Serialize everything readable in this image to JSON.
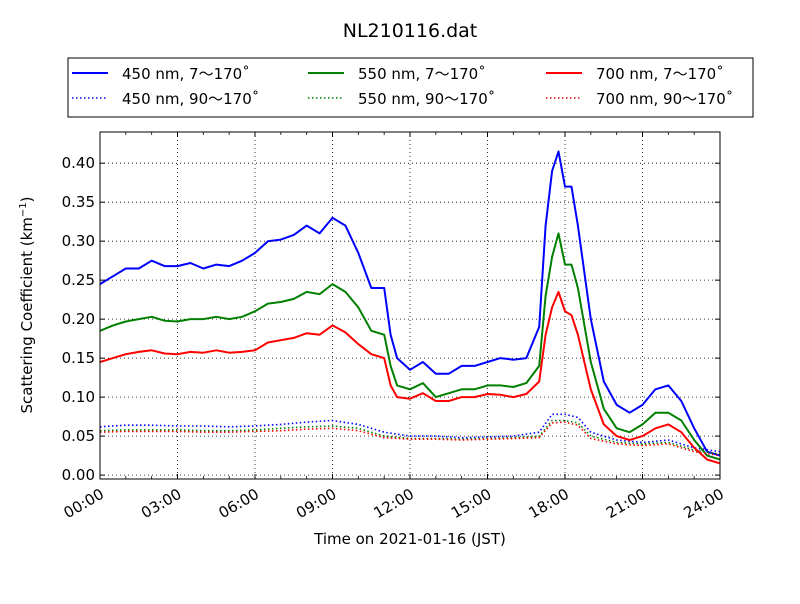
{
  "chart_data": {
    "type": "line",
    "title": "NL210116.dat",
    "xlabel": "Time on 2021-01-16 (JST)",
    "ylabel_main": "Scattering Coefficient (km",
    "ylabel_sup": "−1",
    "ylabel_close": ")",
    "xlim": [
      0,
      24
    ],
    "ylim": [
      -0.005,
      0.44
    ],
    "x_unit": "hours",
    "xticks": [
      {
        "value": 0,
        "label": "00:00"
      },
      {
        "value": 3,
        "label": "03:00"
      },
      {
        "value": 6,
        "label": "06:00"
      },
      {
        "value": 9,
        "label": "09:00"
      },
      {
        "value": 12,
        "label": "12:00"
      },
      {
        "value": 15,
        "label": "15:00"
      },
      {
        "value": 18,
        "label": "18:00"
      },
      {
        "value": 21,
        "label": "21:00"
      },
      {
        "value": 24,
        "label": "24:00"
      }
    ],
    "yticks": [
      {
        "value": 0.0,
        "label": "0.00"
      },
      {
        "value": 0.05,
        "label": "0.05"
      },
      {
        "value": 0.1,
        "label": "0.10"
      },
      {
        "value": 0.15,
        "label": "0.15"
      },
      {
        "value": 0.2,
        "label": "0.20"
      },
      {
        "value": 0.25,
        "label": "0.25"
      },
      {
        "value": 0.3,
        "label": "0.30"
      },
      {
        "value": 0.35,
        "label": "0.35"
      },
      {
        "value": 0.4,
        "label": "0.40"
      }
    ],
    "grid": true,
    "grid_style": "dotted",
    "legend_position": "top",
    "series": [
      {
        "name": "450 nm, 7～170˚",
        "color": "#0000ff",
        "style": "solid",
        "x": [
          0,
          0.5,
          1,
          1.5,
          2,
          2.5,
          3,
          3.5,
          4,
          4.5,
          5,
          5.5,
          6,
          6.5,
          7,
          7.5,
          8,
          8.5,
          9,
          9.5,
          10,
          10.5,
          11,
          11.25,
          11.5,
          12,
          12.5,
          13,
          13.5,
          14,
          14.5,
          15,
          15.5,
          16,
          16.5,
          17,
          17.25,
          17.5,
          17.75,
          18,
          18.25,
          18.5,
          19,
          19.5,
          20,
          20.5,
          21,
          21.5,
          22,
          22.5,
          23,
          23.5,
          24
        ],
        "y": [
          0.245,
          0.255,
          0.265,
          0.265,
          0.275,
          0.268,
          0.268,
          0.272,
          0.265,
          0.27,
          0.268,
          0.275,
          0.285,
          0.3,
          0.302,
          0.308,
          0.32,
          0.31,
          0.33,
          0.32,
          0.285,
          0.24,
          0.24,
          0.18,
          0.15,
          0.135,
          0.145,
          0.13,
          0.13,
          0.14,
          0.14,
          0.145,
          0.15,
          0.148,
          0.15,
          0.19,
          0.32,
          0.39,
          0.415,
          0.37,
          0.37,
          0.32,
          0.2,
          0.12,
          0.09,
          0.08,
          0.09,
          0.11,
          0.115,
          0.095,
          0.06,
          0.03,
          0.025
        ]
      },
      {
        "name": "450 nm, 90～170˚",
        "color": "#0000ff",
        "style": "dotted",
        "x": [
          0,
          1,
          2,
          3,
          4,
          5,
          6,
          7,
          8,
          9,
          10,
          11,
          12,
          13,
          14,
          15,
          16,
          17,
          17.5,
          18,
          18.5,
          19,
          20,
          21,
          22,
          23,
          24
        ],
        "y": [
          0.062,
          0.064,
          0.064,
          0.063,
          0.063,
          0.062,
          0.063,
          0.065,
          0.068,
          0.07,
          0.065,
          0.055,
          0.05,
          0.05,
          0.048,
          0.049,
          0.05,
          0.055,
          0.078,
          0.078,
          0.074,
          0.055,
          0.045,
          0.042,
          0.045,
          0.035,
          0.03
        ]
      },
      {
        "name": "550 nm, 7～170˚",
        "color": "#008000",
        "style": "solid",
        "x": [
          0,
          0.5,
          1,
          1.5,
          2,
          2.5,
          3,
          3.5,
          4,
          4.5,
          5,
          5.5,
          6,
          6.5,
          7,
          7.5,
          8,
          8.5,
          9,
          9.5,
          10,
          10.5,
          11,
          11.25,
          11.5,
          12,
          12.5,
          13,
          13.5,
          14,
          14.5,
          15,
          15.5,
          16,
          16.5,
          17,
          17.25,
          17.5,
          17.75,
          18,
          18.25,
          18.5,
          19,
          19.5,
          20,
          20.5,
          21,
          21.5,
          22,
          22.5,
          23,
          23.5,
          24
        ],
        "y": [
          0.185,
          0.192,
          0.197,
          0.2,
          0.203,
          0.198,
          0.197,
          0.2,
          0.2,
          0.203,
          0.2,
          0.203,
          0.21,
          0.22,
          0.222,
          0.226,
          0.235,
          0.232,
          0.245,
          0.235,
          0.215,
          0.185,
          0.18,
          0.14,
          0.115,
          0.11,
          0.118,
          0.1,
          0.105,
          0.11,
          0.11,
          0.115,
          0.115,
          0.113,
          0.118,
          0.14,
          0.23,
          0.28,
          0.31,
          0.27,
          0.27,
          0.24,
          0.145,
          0.085,
          0.06,
          0.055,
          0.065,
          0.08,
          0.08,
          0.07,
          0.045,
          0.025,
          0.02
        ]
      },
      {
        "name": "550 nm, 90～170˚",
        "color": "#008000",
        "style": "dotted",
        "x": [
          0,
          1,
          2,
          3,
          4,
          5,
          6,
          7,
          8,
          9,
          10,
          11,
          12,
          13,
          14,
          15,
          16,
          17,
          17.5,
          18,
          18.5,
          19,
          20,
          21,
          22,
          23,
          24
        ],
        "y": [
          0.057,
          0.058,
          0.058,
          0.058,
          0.057,
          0.057,
          0.058,
          0.06,
          0.062,
          0.063,
          0.06,
          0.05,
          0.047,
          0.047,
          0.046,
          0.047,
          0.048,
          0.05,
          0.07,
          0.07,
          0.067,
          0.05,
          0.042,
          0.04,
          0.042,
          0.032,
          0.027
        ]
      },
      {
        "name": "700 nm, 7～170˚",
        "color": "#ff0000",
        "style": "solid",
        "x": [
          0,
          0.5,
          1,
          1.5,
          2,
          2.5,
          3,
          3.5,
          4,
          4.5,
          5,
          5.5,
          6,
          6.5,
          7,
          7.5,
          8,
          8.5,
          9,
          9.5,
          10,
          10.5,
          11,
          11.25,
          11.5,
          12,
          12.5,
          13,
          13.5,
          14,
          14.5,
          15,
          15.5,
          16,
          16.5,
          17,
          17.25,
          17.5,
          17.75,
          18,
          18.25,
          18.5,
          19,
          19.5,
          20,
          20.5,
          21,
          21.5,
          22,
          22.5,
          23,
          23.5,
          24
        ],
        "y": [
          0.145,
          0.15,
          0.155,
          0.158,
          0.16,
          0.156,
          0.155,
          0.158,
          0.157,
          0.16,
          0.157,
          0.158,
          0.16,
          0.17,
          0.173,
          0.176,
          0.182,
          0.18,
          0.192,
          0.183,
          0.168,
          0.155,
          0.15,
          0.115,
          0.1,
          0.098,
          0.105,
          0.095,
          0.095,
          0.1,
          0.1,
          0.104,
          0.103,
          0.1,
          0.104,
          0.12,
          0.18,
          0.215,
          0.235,
          0.21,
          0.205,
          0.18,
          0.11,
          0.065,
          0.05,
          0.045,
          0.05,
          0.06,
          0.065,
          0.055,
          0.035,
          0.02,
          0.015
        ]
      },
      {
        "name": "700 nm, 90～170˚",
        "color": "#ff0000",
        "style": "dotted",
        "x": [
          0,
          1,
          2,
          3,
          4,
          5,
          6,
          7,
          8,
          9,
          10,
          11,
          12,
          13,
          14,
          15,
          16,
          17,
          17.5,
          18,
          18.5,
          19,
          20,
          21,
          22,
          23,
          24
        ],
        "y": [
          0.055,
          0.056,
          0.056,
          0.056,
          0.055,
          0.055,
          0.056,
          0.057,
          0.059,
          0.06,
          0.057,
          0.048,
          0.046,
          0.046,
          0.045,
          0.046,
          0.047,
          0.048,
          0.067,
          0.068,
          0.064,
          0.047,
          0.04,
          0.038,
          0.04,
          0.03,
          0.025
        ]
      }
    ]
  }
}
